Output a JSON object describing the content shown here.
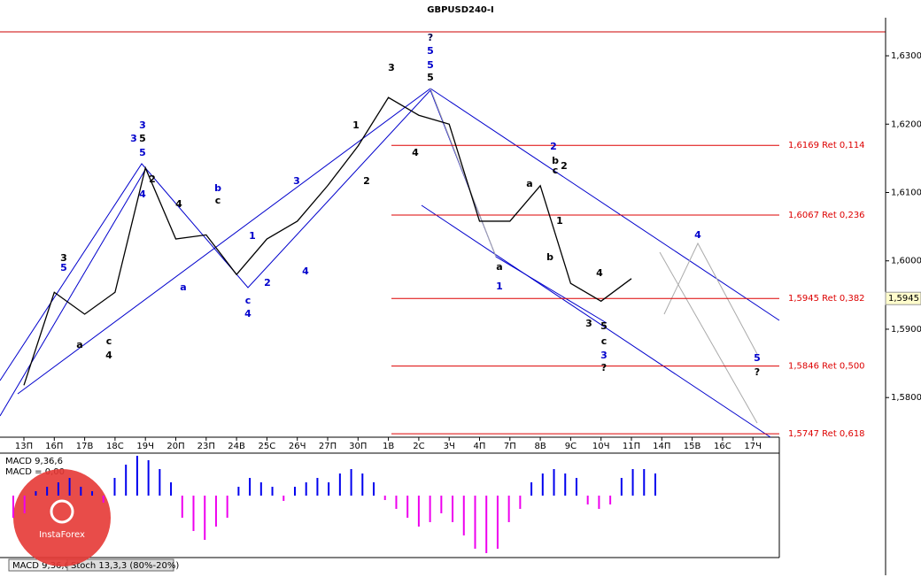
{
  "chart_data": [
    {
      "type": "line",
      "title": "GBPUSD240-I",
      "color": "#000000",
      "categories": [
        "13П",
        "16П",
        "17В",
        "18С",
        "19Ч",
        "20П",
        "23П",
        "24В",
        "25С",
        "26Ч",
        "27П",
        "30П",
        "1В",
        "2С",
        "3Ч",
        "4П",
        "7П",
        "8В",
        "9С",
        "10Ч",
        "11П",
        "14П",
        "15В",
        "16С",
        "17Ч"
      ],
      "values": [
        1.5818,
        1.5954,
        1.5922,
        1.5954,
        1.6136,
        1.6032,
        1.6038,
        1.598,
        1.6032,
        1.6058,
        1.611,
        1.6168,
        1.6239,
        1.6213,
        1.62,
        1.6058,
        1.6058,
        1.611,
        1.5967,
        1.5941,
        1.5974,
        null,
        null,
        null,
        null
      ],
      "ylim": [
        1.5742,
        1.6335
      ],
      "yticks": [
        {
          "value": 1.58,
          "label": "1,5800"
        },
        {
          "value": 1.59,
          "label": "1,5900"
        },
        {
          "value": 1.6,
          "label": "1,6000"
        },
        {
          "value": 1.61,
          "label": "1,6100"
        },
        {
          "value": 1.62,
          "label": "1,6200"
        },
        {
          "value": 1.63,
          "label": "1,6300"
        }
      ],
      "last_price": {
        "value": 1.5945,
        "label": "1,5945"
      },
      "levels_color": "#dd0000",
      "levels": [
        {
          "value": 1.6169,
          "label": "1,6169 Ret 0,114"
        },
        {
          "value": 1.6067,
          "label": "1,6067 Ret 0,236"
        },
        {
          "value": 1.5945,
          "label": "1,5945 Ret 0,382"
        },
        {
          "value": 1.5846,
          "label": "1,5846 Ret 0,500"
        },
        {
          "value": 1.5747,
          "label": "1,5747 Ret 0,618"
        }
      ],
      "wave_labels": [
        {
          "text": "3",
          "color": "#000000"
        },
        {
          "text": "5",
          "color": "#0000cc"
        },
        {
          "text": "a",
          "color": "#000000"
        },
        {
          "text": "c",
          "color": "#000000"
        },
        {
          "text": "4",
          "color": "#000000"
        },
        {
          "text": "3",
          "color": "#0000cc"
        },
        {
          "text": "3",
          "color": "#0000cc"
        },
        {
          "text": "5",
          "color": "#000000"
        },
        {
          "text": "5",
          "color": "#0000cc"
        },
        {
          "text": "4",
          "color": "#0000cc"
        },
        {
          "text": "2",
          "color": "#000000"
        },
        {
          "text": "b",
          "color": "#0000cc"
        },
        {
          "text": "c",
          "color": "#000000"
        },
        {
          "text": "4",
          "color": "#000000"
        },
        {
          "text": "1",
          "color": "#0000cc"
        },
        {
          "text": "c",
          "color": "#0000cc"
        },
        {
          "text": "4",
          "color": "#0000cc"
        },
        {
          "text": "2",
          "color": "#0000cc"
        },
        {
          "text": "3",
          "color": "#0000cc"
        },
        {
          "text": "4",
          "color": "#0000cc"
        },
        {
          "text": "a",
          "color": "#0000cc"
        },
        {
          "text": "?",
          "color": "#000044"
        },
        {
          "text": "5",
          "color": "#0000cc"
        },
        {
          "text": "5",
          "color": "#0000cc"
        },
        {
          "text": "5",
          "color": "#000000"
        },
        {
          "text": "3",
          "color": "#000000"
        },
        {
          "text": "1",
          "color": "#000000"
        },
        {
          "text": "2",
          "color": "#000000"
        },
        {
          "text": "4",
          "color": "#000000"
        },
        {
          "text": "a",
          "color": "#000000"
        },
        {
          "text": "1",
          "color": "#0000cc"
        },
        {
          "text": "b",
          "color": "#000000"
        },
        {
          "text": "c",
          "color": "#000000"
        },
        {
          "text": "2",
          "color": "#000000"
        },
        {
          "text": "2",
          "color": "#0000cc"
        },
        {
          "text": "a",
          "color": "#000000"
        },
        {
          "text": "1",
          "color": "#000000"
        },
        {
          "text": "b",
          "color": "#000000"
        },
        {
          "text": "4",
          "color": "#000000"
        },
        {
          "text": "3",
          "color": "#000000"
        },
        {
          "text": "5",
          "color": "#000000"
        },
        {
          "text": "c",
          "color": "#000000"
        },
        {
          "text": "3",
          "color": "#0000cc"
        },
        {
          "text": "?",
          "color": "#000000"
        },
        {
          "text": "4",
          "color": "#0000cc"
        },
        {
          "text": "5",
          "color": "#0000cc"
        },
        {
          "text": "?",
          "color": "#000000"
        }
      ]
    },
    {
      "type": "bar",
      "title": "MACD 9,36,6",
      "subtitle": "MACD = 0,00",
      "pos_color": "#0000ee",
      "neg_color": "#ee00ee",
      "ylim": [
        -70,
        48
      ],
      "values": [
        -25,
        -20,
        5,
        10,
        15,
        20,
        10,
        5,
        -8,
        20,
        35,
        45,
        40,
        30,
        15,
        -25,
        -40,
        -50,
        -35,
        -25,
        10,
        20,
        15,
        10,
        -6,
        10,
        15,
        20,
        15,
        25,
        30,
        25,
        15,
        -5,
        -15,
        -25,
        -35,
        -30,
        -20,
        -30,
        -45,
        -60,
        -65,
        -60,
        -30,
        -15,
        15,
        25,
        30,
        25,
        20,
        -10,
        -15,
        -10,
        20,
        30,
        30,
        25
      ]
    }
  ],
  "tabs": [
    "MACD 9,36,6",
    "Stoch 13,3,3 (80%-20%)"
  ],
  "logo": "InstaForex"
}
